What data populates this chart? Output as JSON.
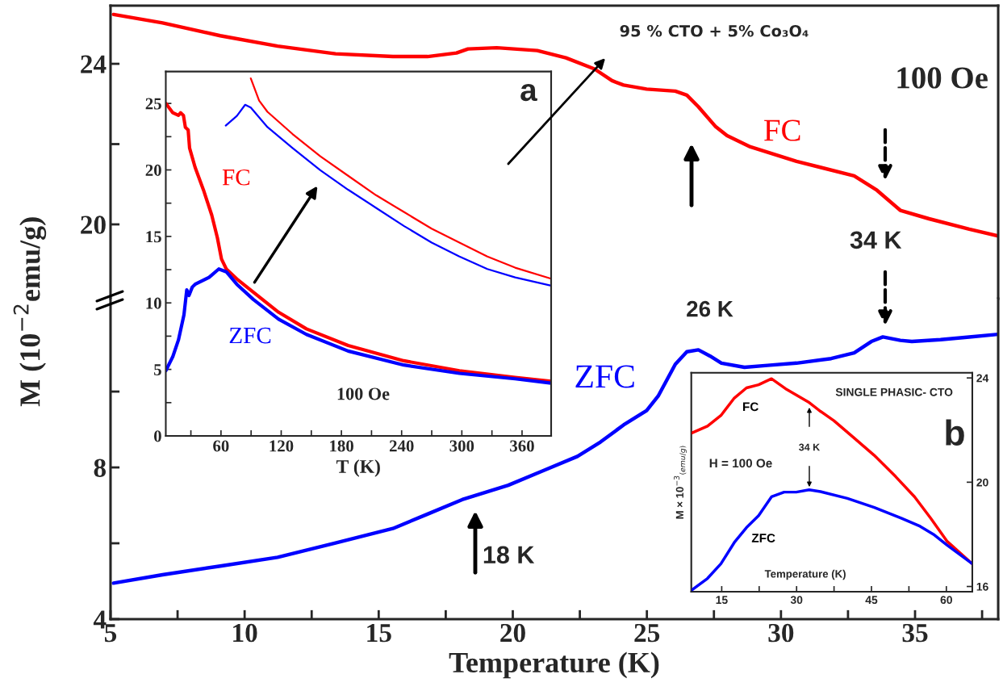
{
  "chart_data": [
    {
      "type": "line",
      "tick_labels": "y",
      "xlim": [
        5,
        38.1
      ],
      "ylim": [
        18.15,
        25.45
      ],
      "yticks": [
        20,
        {
          "value": 22,
          "label": null
        },
        24
      ],
      "annotations": [
        "95 % CTO + 5% Co₃O₄",
        "100 Oe",
        "34 K"
      ],
      "series": [
        {
          "name": "FC",
          "color": "#ff0000",
          "x": [
            5.11,
            6.94,
            9.09,
            11.23,
            13.39,
            15.53,
            16.82,
            17.9,
            18.33,
            19.4,
            20.91,
            21.98,
            23.05,
            23.7,
            24.13,
            24.99,
            26.06,
            26.49,
            26.92,
            27.57,
            27.99,
            28.86,
            30.58,
            32.73,
            33.58,
            34.45,
            35.52,
            37.02,
            38.1
          ],
          "values": [
            25.23,
            25.02,
            24.7,
            24.44,
            24.25,
            24.18,
            24.18,
            24.27,
            24.37,
            24.4,
            24.33,
            24.15,
            23.87,
            23.58,
            23.47,
            23.37,
            23.32,
            23.22,
            22.93,
            22.43,
            22.21,
            21.93,
            21.57,
            21.21,
            20.85,
            20.35,
            20.14,
            19.88,
            19.71
          ]
        }
      ]
    },
    {
      "type": "line",
      "xlim": [
        5,
        38.1
      ],
      "ylim": [
        4,
        12.45
      ],
      "xlabel": "Temperature (K)",
      "ylabel": "M (10$^{−2}$emu/g)",
      "xticks": [
        5,
        {
          "value": 7.5,
          "label": null
        },
        10,
        {
          "value": 12.5,
          "label": null
        },
        15,
        {
          "value": 17.5,
          "label": null
        },
        20,
        {
          "value": 22.5,
          "label": null
        },
        25,
        {
          "value": 27.5,
          "label": null
        },
        30,
        {
          "value": 32.5,
          "label": null
        },
        35,
        {
          "value": 37.5,
          "label": null
        }
      ],
      "yticks": [
        4,
        {
          "value": 6,
          "label": null
        },
        8,
        {
          "value": 10,
          "label": null
        }
      ],
      "annotations": [
        "26 K",
        "18 K"
      ],
      "series": [
        {
          "name": "ZFC",
          "color": "#0000ff",
          "x": [
            5.11,
            6.94,
            9.09,
            11.23,
            13.39,
            15.53,
            16.82,
            18.11,
            19.83,
            21.12,
            22.41,
            23.27,
            24.13,
            24.99,
            25.42,
            26.06,
            26.49,
            26.92,
            27.35,
            27.78,
            28.64,
            29.5,
            30.58,
            31.87,
            32.73,
            33.37,
            33.8,
            34.45,
            34.88,
            35.95,
            37.02,
            38.1
          ],
          "values": [
            4.95,
            5.17,
            5.4,
            5.63,
            6.01,
            6.39,
            6.77,
            7.15,
            7.53,
            7.91,
            8.29,
            8.67,
            9.12,
            9.5,
            9.88,
            10.72,
            11.05,
            11.1,
            10.94,
            10.75,
            10.64,
            10.69,
            10.75,
            10.87,
            11.02,
            11.32,
            11.44,
            11.35,
            11.32,
            11.37,
            11.44,
            11.51
          ]
        }
      ]
    },
    {
      "type": "line",
      "xlim": [
        5,
        389
      ],
      "ylim": [
        0,
        27.4
      ],
      "xlabel": "T (K)",
      "xticks": [
        {
          "value": 30,
          "label": null
        },
        60,
        {
          "value": 90,
          "label": null
        },
        120,
        {
          "value": 150,
          "label": null
        },
        180,
        {
          "value": 210,
          "label": null
        },
        240,
        {
          "value": 270,
          "label": null
        },
        300,
        {
          "value": 330,
          "label": null
        },
        360
      ],
      "yticks": [
        0,
        {
          "value": 2.5,
          "label": null
        },
        5,
        {
          "value": 7.5,
          "label": null
        },
        10,
        {
          "value": 12.5,
          "label": null
        },
        15,
        {
          "value": 17.5,
          "label": null
        },
        20,
        {
          "value": 22.5,
          "label": null
        },
        25
      ],
      "annotations": [
        "a",
        "100 Oe"
      ],
      "series": [
        {
          "name": "FC",
          "color": "#ff0000",
          "x": [
            5.1,
            12.0,
            17.6,
            19.8,
            22.6,
            24.5,
            27.3,
            28.7,
            34.2,
            42.5,
            50.8,
            56.4,
            60.5,
            65.3,
            75.8,
            92.4,
            117.4,
            145.1,
            186.7,
            242.2,
            297.6,
            353.1,
            389
          ],
          "values": [
            25.0,
            24.3,
            24.1,
            24.3,
            24.1,
            23.2,
            23.0,
            21.65,
            20.2,
            18.5,
            16.6,
            14.9,
            13.3,
            12.55,
            11.8,
            10.8,
            9.3,
            8.05,
            6.8,
            5.65,
            4.9,
            4.4,
            4.1
          ]
        },
        {
          "name": "ZFC",
          "color": "#0000ff",
          "x": [
            5.1,
            12.0,
            17.6,
            23.1,
            25.9,
            28.1,
            31.4,
            34.2,
            48.1,
            57.8,
            65.3,
            75.8,
            92.4,
            117.4,
            145.1,
            186.7,
            242.2,
            297.6,
            353.1,
            389
          ],
          "values": [
            4.91,
            5.96,
            7.21,
            9.1,
            10.98,
            10.56,
            11.19,
            11.4,
            11.92,
            12.55,
            12.34,
            11.4,
            10.25,
            8.78,
            7.63,
            6.38,
            5.33,
            4.7,
            4.29,
            3.97
          ]
        },
        {
          "color": "#ff0000",
          "x": [
            89.7,
            98.0,
            106.3,
            131.3,
            159.0,
            186.7,
            214.5,
            242.2,
            269.9,
            297.6,
            325.4,
            353.1,
            389
          ],
          "values": [
            26.88,
            25.21,
            24.37,
            22.7,
            21.02,
            19.56,
            18.1,
            16.84,
            15.58,
            14.54,
            13.49,
            12.65,
            11.82
          ]
        },
        {
          "color": "#0000ff",
          "x": [
            64.7,
            75.8,
            84.1,
            89.7,
            106.3,
            131.3,
            159.0,
            186.7,
            214.5,
            242.2,
            269.9,
            297.6,
            325.4,
            353.1,
            389
          ],
          "values": [
            23.33,
            24.06,
            24.9,
            24.69,
            23.22,
            21.65,
            19.98,
            18.51,
            17.15,
            15.79,
            14.54,
            13.49,
            12.55,
            11.92,
            11.3
          ]
        }
      ]
    },
    {
      "type": "line",
      "xlim": [
        8.9,
        65.2
      ],
      "y2lim": [
        15.8,
        24.2
      ],
      "xlabel": "Temperature (K)",
      "ylabel": "M × 10$^{−3}$$_{(emu/g)}$",
      "xticks": [
        15,
        {
          "value": 22.5,
          "label": null
        },
        30,
        {
          "value": 37.5,
          "label": null
        },
        45,
        {
          "value": 52.5,
          "label": null
        },
        60
      ],
      "y2ticks": [
        16,
        20,
        24
      ],
      "annotations": [
        "SINGLE PHASIC- CTO",
        "b",
        "H = 100 Oe",
        "34 K"
      ],
      "series": [
        {
          "name": "FC",
          "color": "#ff0000",
          "axis": "y2",
          "x": [
            8.91,
            12.15,
            14.84,
            17.53,
            19.96,
            22.39,
            24.97,
            27.77,
            32.35,
            34.78,
            37.47,
            41.25,
            45.56,
            49.87,
            53.64,
            56.87,
            60.11,
            65.2
          ],
          "values": [
            21.88,
            22.15,
            22.56,
            23.23,
            23.62,
            23.74,
            23.97,
            23.59,
            23.08,
            22.72,
            22.36,
            21.74,
            21.03,
            20.21,
            19.44,
            18.62,
            17.74,
            16.87
          ]
        },
        {
          "name": "ZFC",
          "color": "#0000ff",
          "axis": "y2",
          "x": [
            8.91,
            12.15,
            14.84,
            17.53,
            19.96,
            22.39,
            24.97,
            27.5,
            29.93,
            32.51,
            34.78,
            40.17,
            45.56,
            50.95,
            54.73,
            57.42,
            60.11,
            65.2
          ],
          "values": [
            15.85,
            16.31,
            16.87,
            17.69,
            18.26,
            18.72,
            19.44,
            19.62,
            19.62,
            19.71,
            19.64,
            19.38,
            19.03,
            18.62,
            18.31,
            18.0,
            17.59,
            16.87
          ]
        }
      ]
    }
  ]
}
